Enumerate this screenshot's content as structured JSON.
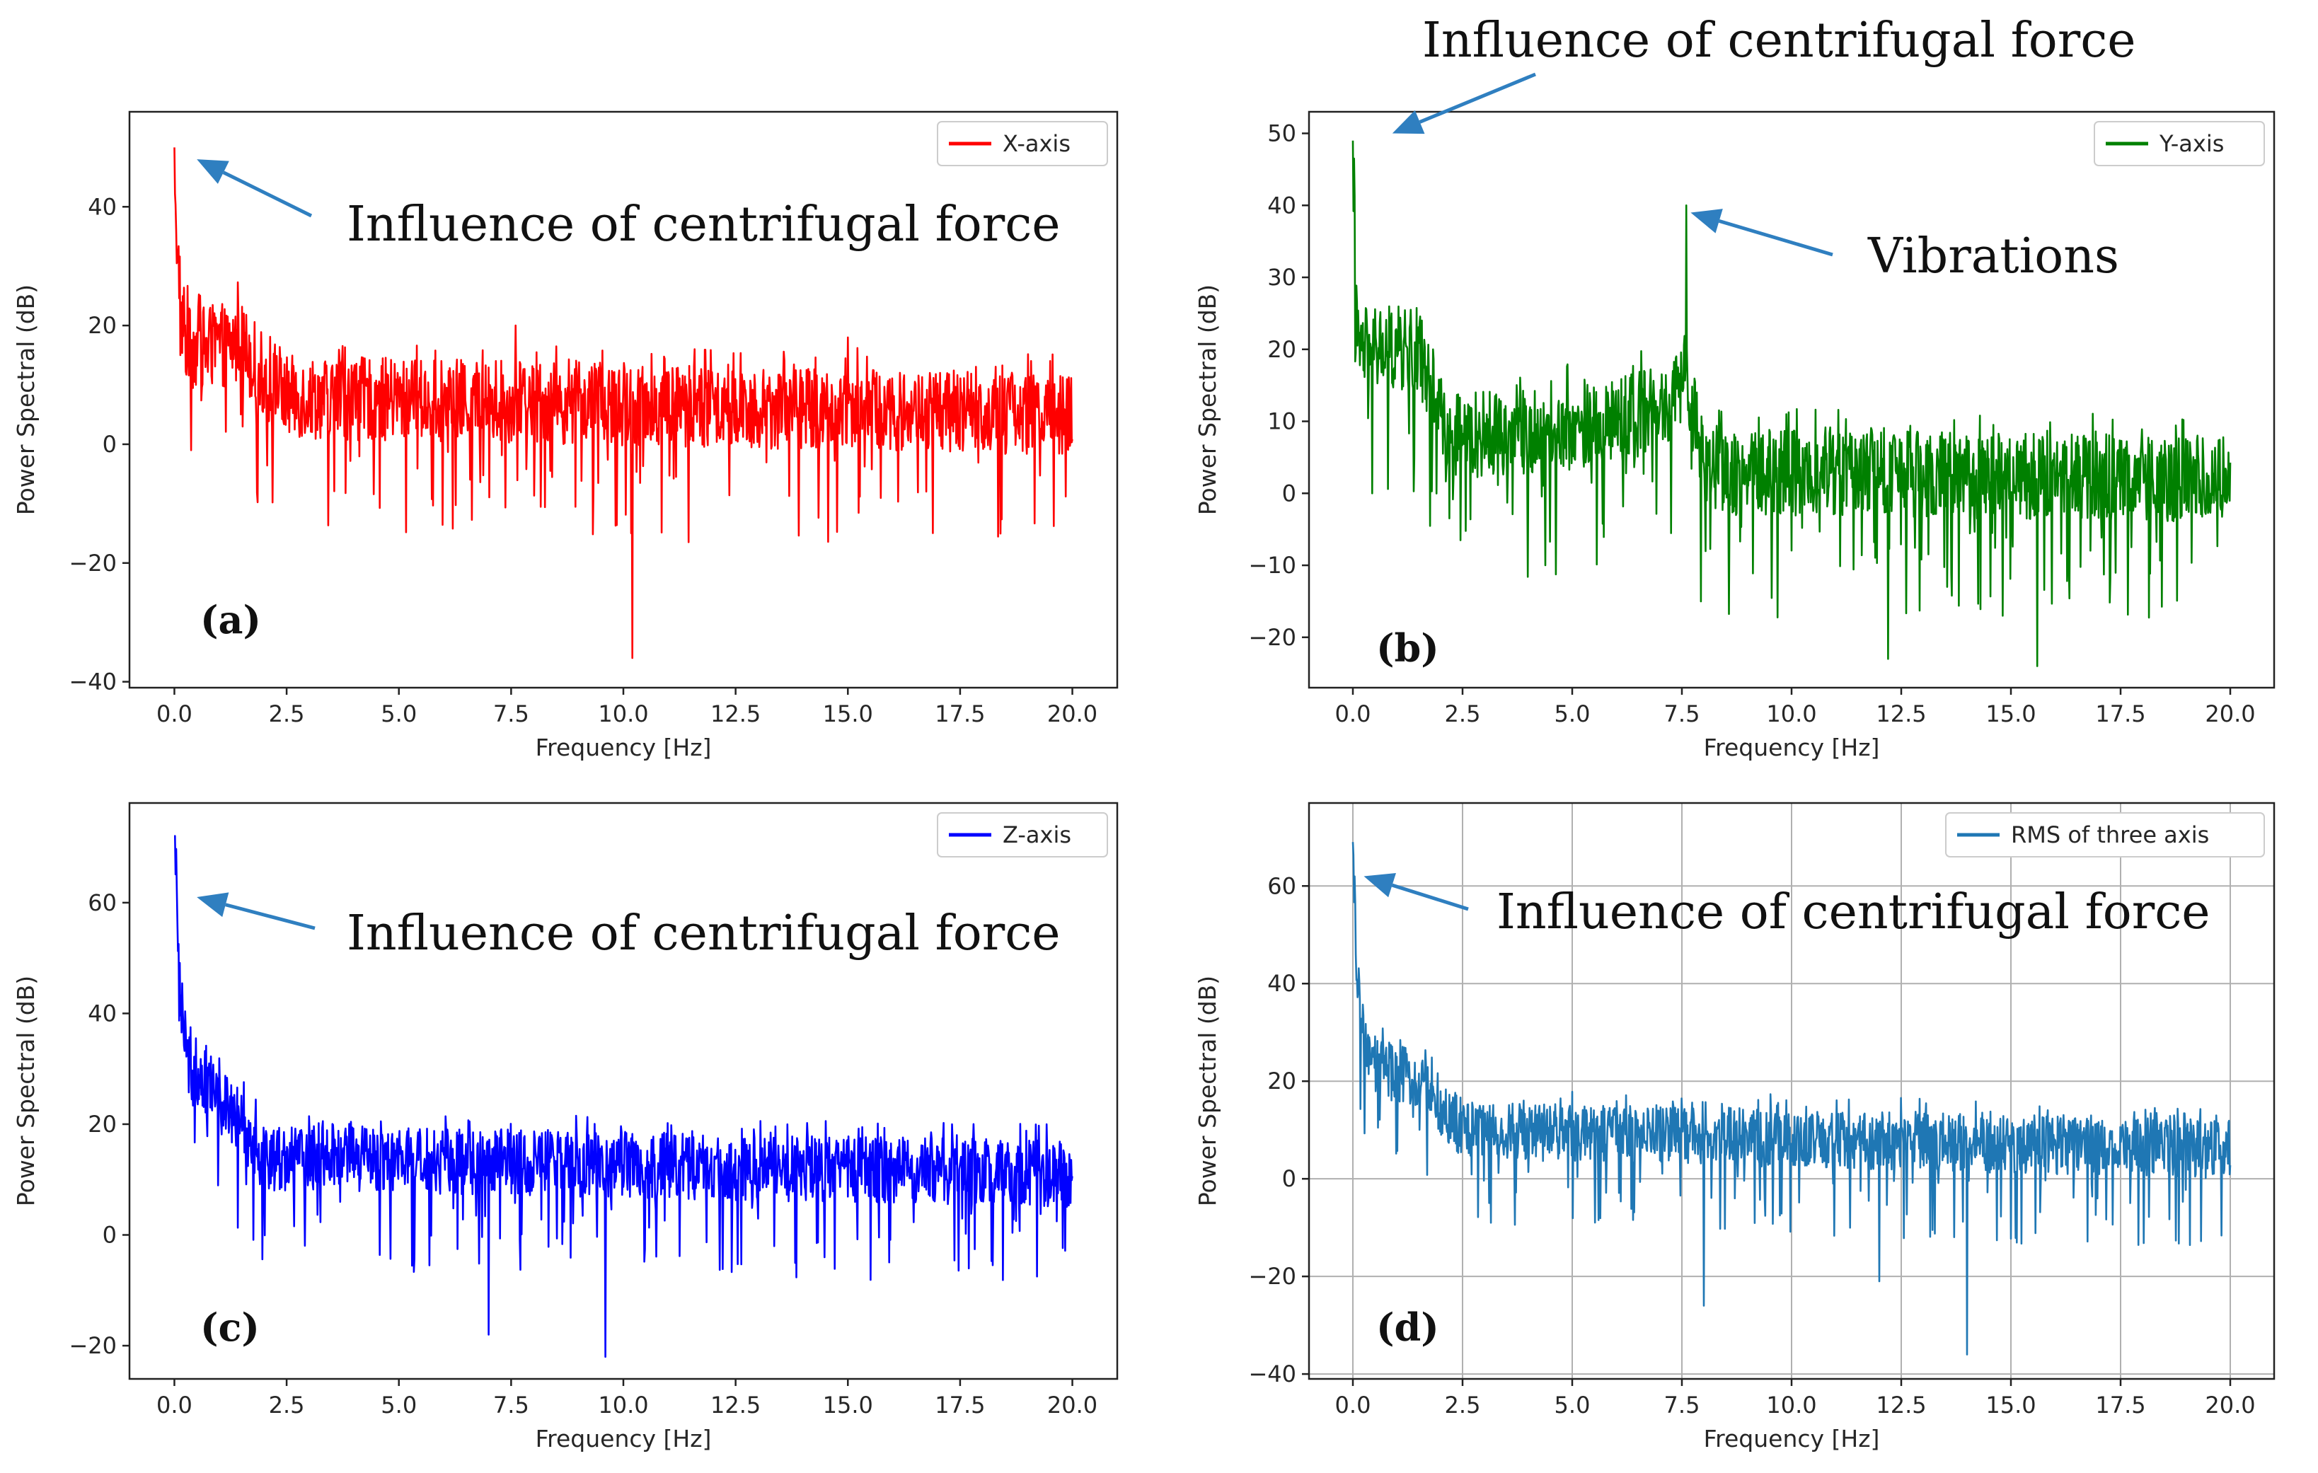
{
  "colors": {
    "arrow": "#2f7fc0",
    "axis": "#222222",
    "grid": "#b0b0b0"
  },
  "chart_data": [
    {
      "panel": "(a)",
      "type": "line",
      "ylabel": "Power Spectral (dB)",
      "xlabel": "Frequency [Hz]",
      "xlim": [
        -1,
        21
      ],
      "ylim": [
        -41,
        56
      ],
      "x_ticks": [
        0,
        2.5,
        5,
        7.5,
        10,
        12.5,
        15,
        17.5,
        20
      ],
      "x_tick_labels": [
        "0.0",
        "2.5",
        "5.0",
        "7.5",
        "10.0",
        "12.5",
        "15.0",
        "17.5",
        "20.0"
      ],
      "y_ticks": [
        -40,
        -20,
        0,
        20,
        40
      ],
      "y_tick_labels": [
        "−40",
        "−20",
        "0",
        "20",
        "40"
      ],
      "grid": false,
      "legend": "top-right",
      "series": [
        {
          "name": "X-axis",
          "color": "#ff0000",
          "profile": [
            [
              0,
              50
            ],
            [
              0.1,
              22
            ],
            [
              0.3,
              16
            ],
            [
              1.5,
              17
            ],
            [
              2.3,
              8
            ],
            [
              20,
              5
            ]
          ],
          "spread": 7,
          "notable_points": [
            [
              0,
              50
            ],
            [
              10.2,
              -36
            ],
            [
              7.6,
              20
            ],
            [
              15,
              18
            ]
          ]
        }
      ],
      "annotations": [
        {
          "text": "Influence of centrifugal force",
          "target": [
            0.5,
            48
          ]
        }
      ]
    },
    {
      "panel": "(b)",
      "type": "line",
      "ylabel": "Power Spectral (dB)",
      "xlabel": "Frequency [Hz]",
      "xlim": [
        -1,
        21
      ],
      "ylim": [
        -27,
        53
      ],
      "x_ticks": [
        0,
        2.5,
        5,
        7.5,
        10,
        12.5,
        15,
        17.5,
        20
      ],
      "x_tick_labels": [
        "0.0",
        "2.5",
        "5.0",
        "7.5",
        "10.0",
        "12.5",
        "15.0",
        "17.5",
        "20.0"
      ],
      "y_ticks": [
        -20,
        -10,
        0,
        10,
        20,
        30,
        40,
        50
      ],
      "y_tick_labels": [
        "−20",
        "−10",
        "0",
        "10",
        "20",
        "30",
        "40",
        "50"
      ],
      "grid": false,
      "legend": "top-right",
      "series": [
        {
          "name": "Y-axis",
          "color": "#008000",
          "profile": [
            [
              0,
              49
            ],
            [
              0.1,
              20
            ],
            [
              0.6,
              20
            ],
            [
              1.5,
              20
            ],
            [
              2.2,
              8
            ],
            [
              5,
              9
            ],
            [
              7.3,
              12
            ],
            [
              7.6,
              17
            ],
            [
              8,
              3
            ],
            [
              20,
              2
            ]
          ],
          "spread": 6,
          "notable_points": [
            [
              0,
              49
            ],
            [
              7.6,
              40
            ],
            [
              15.6,
              -24
            ],
            [
              12.2,
              -23
            ]
          ]
        }
      ],
      "annotations": [
        {
          "text": "Influence of centrifugal force",
          "target": [
            0.9,
            50
          ]
        },
        {
          "text": "Vibrations",
          "target": [
            7.7,
            39
          ]
        }
      ]
    },
    {
      "panel": "(c)",
      "type": "line",
      "ylabel": "Power Spectral (dB)",
      "xlabel": "Frequency [Hz]",
      "xlim": [
        -1,
        21
      ],
      "ylim": [
        -26,
        78
      ],
      "x_ticks": [
        0,
        2.5,
        5,
        7.5,
        10,
        12.5,
        15,
        17.5,
        20
      ],
      "x_tick_labels": [
        "0.0",
        "2.5",
        "5.0",
        "7.5",
        "10.0",
        "12.5",
        "15.0",
        "17.5",
        "20.0"
      ],
      "y_ticks": [
        -20,
        0,
        20,
        40,
        60
      ],
      "y_tick_labels": [
        "−20",
        "0",
        "20",
        "40",
        "60"
      ],
      "grid": false,
      "legend": "top-right",
      "series": [
        {
          "name": "Z-axis",
          "color": "#0000ff",
          "profile": [
            [
              0,
              72
            ],
            [
              0.1,
              45
            ],
            [
              0.3,
              30
            ],
            [
              1,
              26
            ],
            [
              2,
              14
            ],
            [
              20,
              11
            ]
          ],
          "spread": 6,
          "notable_points": [
            [
              0,
              72
            ],
            [
              9.6,
              -22
            ],
            [
              7,
              -18
            ],
            [
              17.7,
              -16
            ]
          ]
        }
      ],
      "annotations": [
        {
          "text": "Influence of centrifugal force",
          "target": [
            0.5,
            61
          ]
        }
      ]
    },
    {
      "panel": "(d)",
      "type": "line",
      "ylabel": "Power Spectral (dB)",
      "xlabel": "Frequency [Hz]",
      "xlim": [
        -1,
        21
      ],
      "ylim": [
        -41,
        77
      ],
      "x_ticks": [
        0,
        2.5,
        5,
        7.5,
        10,
        12.5,
        15,
        17.5,
        20
      ],
      "x_tick_labels": [
        "0.0",
        "2.5",
        "5.0",
        "7.5",
        "10.0",
        "12.5",
        "15.0",
        "17.5",
        "20.0"
      ],
      "y_ticks": [
        -40,
        -20,
        0,
        20,
        40,
        60
      ],
      "y_tick_labels": [
        "−40",
        "−20",
        "0",
        "20",
        "40",
        "60"
      ],
      "grid": true,
      "legend": "top-right",
      "series": [
        {
          "name": "RMS of three axis",
          "color": "#1f77b4",
          "profile": [
            [
              0,
              69
            ],
            [
              0.1,
              40
            ],
            [
              0.3,
              24
            ],
            [
              1.5,
              20
            ],
            [
              2.5,
              10
            ],
            [
              20,
              6
            ]
          ],
          "spread": 6,
          "notable_points": [
            [
              0,
              69
            ],
            [
              14,
              -36
            ],
            [
              8,
              -26
            ],
            [
              12,
              -21
            ]
          ]
        }
      ],
      "annotations": [
        {
          "text": "Influence of centrifugal force",
          "target": [
            0.25,
            62
          ]
        }
      ]
    }
  ]
}
